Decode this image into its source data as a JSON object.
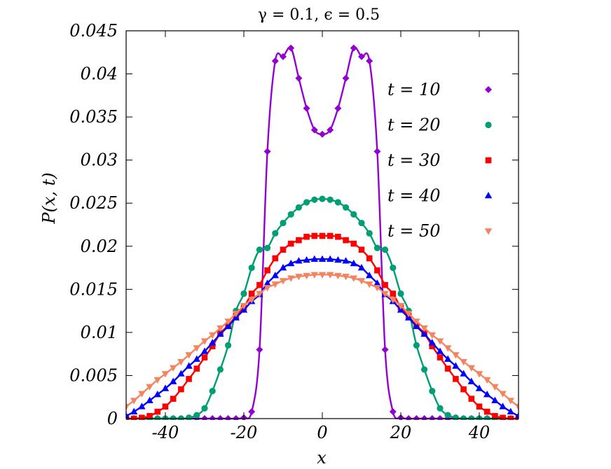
{
  "chart_data": {
    "type": "line",
    "title": "γ  =  0.1,  ϵ  =  0.5",
    "xlabel": "x",
    "ylabel": "P(x, t)",
    "xlim": [
      -50,
      50
    ],
    "ylim": [
      0,
      0.045
    ],
    "xticks": [
      -40,
      -20,
      0,
      20,
      40
    ],
    "xtick_labels": [
      "-40",
      "-20",
      "0",
      "20",
      "40"
    ],
    "yticks": [
      0,
      0.005,
      0.01,
      0.015,
      0.02,
      0.025,
      0.03,
      0.035,
      0.04,
      0.045
    ],
    "ytick_labels": [
      "0",
      "0.005",
      "0.01",
      "0.015",
      "0.02",
      "0.025",
      "0.03",
      "0.035",
      "0.04",
      "0.045"
    ],
    "grid": false,
    "legend_position": "top-right",
    "series": [
      {
        "name": "t  =  10",
        "color": "#9400d3",
        "marker": "diamond",
        "x": [
          -50,
          -48,
          -46,
          -44,
          -42,
          -40,
          -38,
          -36,
          -34,
          -32,
          -30,
          -28,
          -26,
          -24,
          -22,
          -20,
          -18,
          -16,
          -14,
          -12,
          -10,
          -8,
          -6,
          -4,
          -2,
          0,
          2,
          4,
          6,
          8,
          10,
          12,
          14,
          16,
          18,
          20,
          22,
          24,
          26,
          28,
          30,
          32,
          34,
          36,
          38,
          40,
          42,
          44,
          46,
          48,
          50
        ],
        "y": [
          0,
          0,
          0,
          0,
          0,
          0,
          0,
          0,
          0,
          0,
          0,
          0,
          0,
          0,
          0,
          0.0001,
          0.0008,
          0.008,
          0.031,
          0.0415,
          0.042,
          0.043,
          0.0395,
          0.036,
          0.0335,
          0.033,
          0.0335,
          0.036,
          0.0395,
          0.043,
          0.042,
          0.0415,
          0.031,
          0.008,
          0.0008,
          0.0001,
          0,
          0,
          0,
          0,
          0,
          0,
          0,
          0,
          0,
          0,
          0,
          0,
          0,
          0,
          0
        ]
      },
      {
        "name": "t  =  20",
        "color": "#009e73",
        "marker": "circle",
        "x": [
          -50,
          -48,
          -46,
          -44,
          -42,
          -40,
          -38,
          -36,
          -34,
          -32,
          -30,
          -28,
          -26,
          -24,
          -22,
          -20,
          -18,
          -16,
          -14,
          -12,
          -10,
          -8,
          -6,
          -4,
          -2,
          0,
          2,
          4,
          6,
          8,
          10,
          12,
          14,
          16,
          18,
          20,
          22,
          24,
          26,
          28,
          30,
          32,
          34,
          36,
          38,
          40,
          42,
          44,
          46,
          48,
          50
        ],
        "y": [
          0,
          0,
          0,
          0,
          0,
          0,
          0,
          0,
          0.0001,
          0.0004,
          0.0012,
          0.0032,
          0.0057,
          0.0085,
          0.0125,
          0.0145,
          0.0175,
          0.0196,
          0.0198,
          0.0215,
          0.0227,
          0.0237,
          0.0245,
          0.0251,
          0.0254,
          0.0255,
          0.0254,
          0.0251,
          0.0245,
          0.0237,
          0.0227,
          0.0215,
          0.0198,
          0.0196,
          0.0175,
          0.0145,
          0.0125,
          0.0085,
          0.0057,
          0.0032,
          0.0012,
          0.0004,
          0.0001,
          0,
          0,
          0,
          0,
          0,
          0,
          0,
          0
        ]
      },
      {
        "name": "t  =  30",
        "color": "#ff0000",
        "marker": "square",
        "x": [
          -50,
          -48,
          -46,
          -44,
          -42,
          -40,
          -38,
          -36,
          -34,
          -32,
          -30,
          -28,
          -26,
          -24,
          -22,
          -20,
          -18,
          -16,
          -14,
          -12,
          -10,
          -8,
          -6,
          -4,
          -2,
          0,
          2,
          4,
          6,
          8,
          10,
          12,
          14,
          16,
          18,
          20,
          22,
          24,
          26,
          28,
          30,
          32,
          34,
          36,
          38,
          40,
          42,
          44,
          46,
          48,
          50
        ],
        "y": [
          0,
          0,
          0.0001,
          0.0003,
          0.0008,
          0.0014,
          0.0023,
          0.0034,
          0.0046,
          0.0058,
          0.0071,
          0.0084,
          0.0099,
          0.0108,
          0.0119,
          0.0129,
          0.0145,
          0.0155,
          0.0172,
          0.0186,
          0.0196,
          0.0203,
          0.0207,
          0.0211,
          0.0212,
          0.0212,
          0.0212,
          0.0211,
          0.0207,
          0.0203,
          0.0196,
          0.0186,
          0.0172,
          0.0155,
          0.0145,
          0.0129,
          0.0119,
          0.0108,
          0.0099,
          0.0084,
          0.0071,
          0.0058,
          0.0046,
          0.0034,
          0.0023,
          0.0014,
          0.0008,
          0.0003,
          0.0001,
          0,
          0
        ]
      },
      {
        "name": "t  =  40",
        "color": "#0000ff",
        "marker": "triangle-up",
        "x": [
          -50,
          -48,
          -46,
          -44,
          -42,
          -40,
          -38,
          -36,
          -34,
          -32,
          -30,
          -28,
          -26,
          -24,
          -22,
          -20,
          -18,
          -16,
          -14,
          -12,
          -10,
          -8,
          -6,
          -4,
          -2,
          0,
          2,
          4,
          6,
          8,
          10,
          12,
          14,
          16,
          18,
          20,
          22,
          24,
          26,
          28,
          30,
          32,
          34,
          36,
          38,
          40,
          42,
          44,
          46,
          48,
          50
        ],
        "y": [
          0.0003,
          0.0008,
          0.0014,
          0.0021,
          0.0028,
          0.0035,
          0.0043,
          0.0052,
          0.0061,
          0.0069,
          0.0078,
          0.0088,
          0.0098,
          0.0107,
          0.0117,
          0.0126,
          0.0136,
          0.0144,
          0.0157,
          0.0166,
          0.0175,
          0.018,
          0.0183,
          0.0184,
          0.0185,
          0.0185,
          0.0185,
          0.0184,
          0.0183,
          0.018,
          0.0175,
          0.0166,
          0.0157,
          0.0144,
          0.0136,
          0.0126,
          0.0117,
          0.0107,
          0.0098,
          0.0088,
          0.0078,
          0.0069,
          0.0061,
          0.0052,
          0.0043,
          0.0035,
          0.0028,
          0.0021,
          0.0014,
          0.0008,
          0.0003
        ]
      },
      {
        "name": "t  =  50",
        "color": "#f4845f",
        "marker": "triangle-down",
        "x": [
          -50,
          -48,
          -46,
          -44,
          -42,
          -40,
          -38,
          -36,
          -34,
          -32,
          -30,
          -28,
          -26,
          -24,
          -22,
          -20,
          -18,
          -16,
          -14,
          -12,
          -10,
          -8,
          -6,
          -4,
          -2,
          0,
          2,
          4,
          6,
          8,
          10,
          12,
          14,
          16,
          18,
          20,
          22,
          24,
          26,
          28,
          30,
          32,
          34,
          36,
          38,
          40,
          42,
          44,
          46,
          48,
          50
        ],
        "y": [
          0.0014,
          0.0021,
          0.0029,
          0.0037,
          0.0045,
          0.0052,
          0.0059,
          0.0066,
          0.0074,
          0.0082,
          0.009,
          0.0097,
          0.0105,
          0.0113,
          0.0122,
          0.0131,
          0.0138,
          0.0145,
          0.0152,
          0.0156,
          0.016,
          0.0163,
          0.0165,
          0.0166,
          0.0167,
          0.0167,
          0.0167,
          0.0166,
          0.0165,
          0.0163,
          0.016,
          0.0156,
          0.0152,
          0.0145,
          0.0138,
          0.0131,
          0.0122,
          0.0113,
          0.0105,
          0.0097,
          0.009,
          0.0082,
          0.0074,
          0.0066,
          0.0059,
          0.0052,
          0.0045,
          0.0037,
          0.0029,
          0.0021,
          0.0014
        ]
      }
    ]
  }
}
